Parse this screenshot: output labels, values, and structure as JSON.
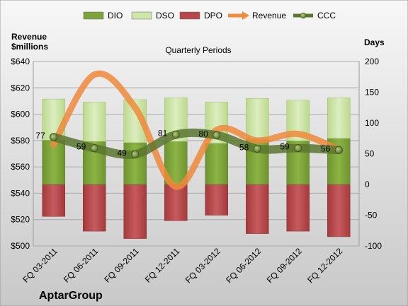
{
  "chart_data": {
    "type": "bar",
    "title": "Quarterly Periods",
    "company": "AptarGroup",
    "left_axis_label_line1": "Revenue",
    "left_axis_label_line2": "$millions",
    "right_axis_label": "Days",
    "categories": [
      "FQ 03-2011",
      "FQ 06-2011",
      "FQ 09-2011",
      "FQ 12-2011",
      "FQ 03-2012",
      "FQ 06-2012",
      "FQ 09-2012",
      "FQ 12-2012"
    ],
    "left_ylim": [
      500,
      640
    ],
    "left_ticks": [
      "$500",
      "$520",
      "$540",
      "$560",
      "$580",
      "$600",
      "$620",
      "$640"
    ],
    "left_tick_values": [
      500,
      520,
      540,
      560,
      580,
      600,
      620,
      640
    ],
    "right_ylim": [
      -100,
      200
    ],
    "right_ticks": [
      "-100",
      "-50",
      "0",
      "50",
      "100",
      "150",
      "200"
    ],
    "right_tick_values": [
      -100,
      -50,
      0,
      50,
      100,
      150,
      200
    ],
    "grid": true,
    "legend_position": "top",
    "colors": {
      "dio": "#7ea33a",
      "dso": "#c9e2a0",
      "dpo": "#b7474a",
      "revenue": "#f08a3c",
      "ccc": "#5b7530",
      "background_top": "#f6f6f6",
      "background_bottom": "#c9c9c9"
    },
    "series": [
      {
        "name": "DIO",
        "axis": "right",
        "values": [
          72,
          70,
          68,
          70,
          67,
          74,
          71,
          75
        ]
      },
      {
        "name": "DSO",
        "axis": "right",
        "values": [
          67,
          64,
          70,
          71,
          67,
          66,
          66,
          66
        ]
      },
      {
        "name": "DPO",
        "axis": "right",
        "values": [
          -52,
          -76,
          -88,
          -59,
          -50,
          -80,
          -76,
          -85
        ]
      },
      {
        "name": "Revenue",
        "axis": "left",
        "values": [
          577,
          630,
          605,
          545,
          588,
          580,
          585,
          573
        ]
      },
      {
        "name": "CCC",
        "axis": "right",
        "values": [
          77,
          59,
          49,
          81,
          80,
          58,
          59,
          56
        ]
      }
    ],
    "ccc_labels": [
      "77",
      "59",
      "49",
      "81",
      "80",
      "58",
      "59",
      "56"
    ]
  }
}
